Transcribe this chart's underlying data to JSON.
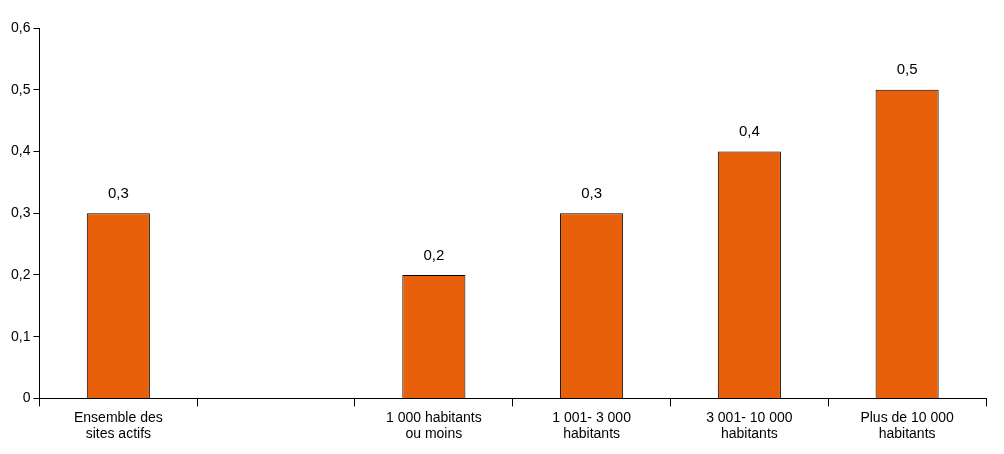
{
  "chart_data": {
    "type": "bar",
    "categories": [
      "Ensemble des sites actifs",
      null,
      "1 000 habitants ou moins",
      "1 001- 3 000 habitants",
      "3 001- 10 000 habitants",
      "Plus de 10 000 habitants"
    ],
    "values": [
      0.3,
      null,
      0.2,
      0.3,
      0.4,
      0.5
    ],
    "value_labels": [
      "0,3",
      null,
      "0,2",
      "0,3",
      "0,4",
      "0,5"
    ],
    "color": "#e8600a",
    "ylim": [
      0,
      0.6
    ],
    "yticks": [
      {
        "value": 0,
        "label": "0"
      },
      {
        "value": 0.1,
        "label": "0,1"
      },
      {
        "value": 0.2,
        "label": "0,2"
      },
      {
        "value": 0.3,
        "label": "0,3"
      },
      {
        "value": 0.4,
        "label": "0,4"
      },
      {
        "value": 0.5,
        "label": "0,5"
      },
      {
        "value": 0.6,
        "label": "0,6"
      }
    ],
    "grid": false,
    "legend": false
  }
}
